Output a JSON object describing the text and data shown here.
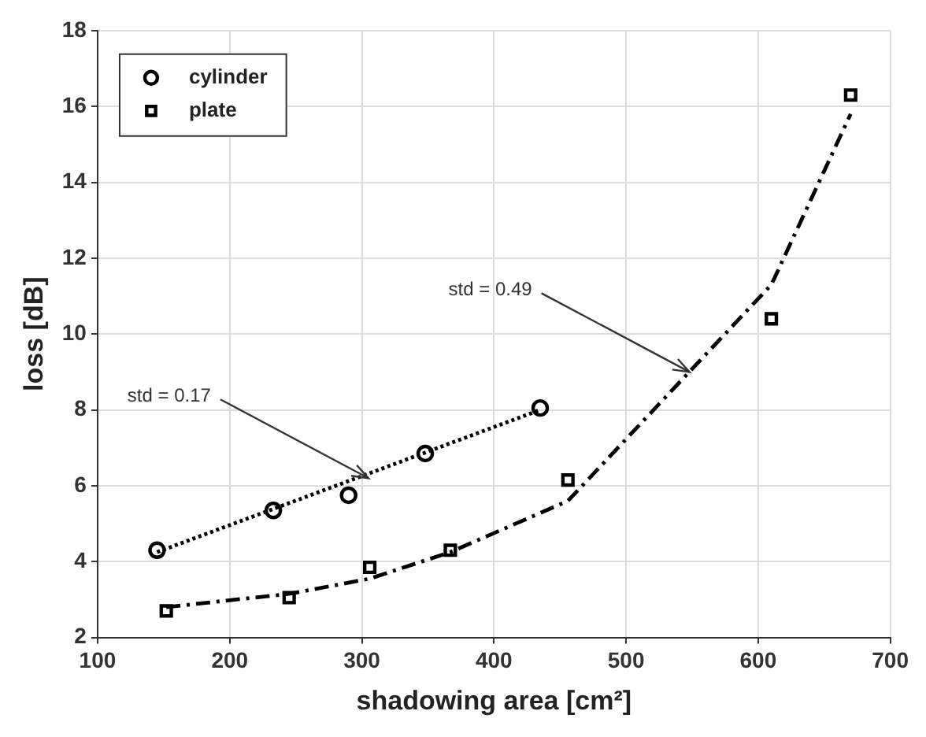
{
  "chart_data": {
    "type": "scatter",
    "xlabel": "shadowing area [cm²]",
    "ylabel": "loss [dB]",
    "xlim": [
      100,
      700
    ],
    "xticks": [
      100,
      200,
      300,
      400,
      500,
      600,
      700
    ],
    "ylim": [
      2,
      18
    ],
    "yticks": [
      2,
      4,
      6,
      8,
      10,
      12,
      14,
      16,
      18
    ],
    "grid": true,
    "legend": "top left",
    "series": [
      {
        "name": "cylinder",
        "type": "scatter",
        "marker": "circle",
        "color": "#000000",
        "x": [
          145,
          233,
          290,
          348,
          435
        ],
        "values": [
          4.3,
          5.35,
          5.75,
          6.85,
          8.05
        ]
      },
      {
        "name": "plate",
        "type": "scatter",
        "marker": "square",
        "color": "#000000",
        "x": [
          152,
          245,
          306,
          367,
          456,
          610,
          670
        ],
        "values": [
          2.7,
          3.05,
          3.85,
          4.3,
          6.15,
          10.4,
          16.3
        ]
      },
      {
        "type": "line",
        "marker": "none",
        "line_style": "dotted",
        "color": "#000000",
        "x": [
          145,
          435
        ],
        "values": [
          4.25,
          8.0
        ]
      },
      {
        "type": "line",
        "marker": "none",
        "line_style": "dashed",
        "color": "#000000",
        "x": [
          152,
          245,
          306,
          367,
          456,
          610,
          670
        ],
        "values": [
          2.8,
          3.15,
          3.55,
          4.25,
          5.6,
          11.3,
          15.8
        ]
      }
    ],
    "annotations": [
      {
        "text": "std = 0.17",
        "x": 305,
        "y": 6.2
      },
      {
        "text": "std = 0.49",
        "x": 548,
        "y": 9.0
      }
    ]
  }
}
